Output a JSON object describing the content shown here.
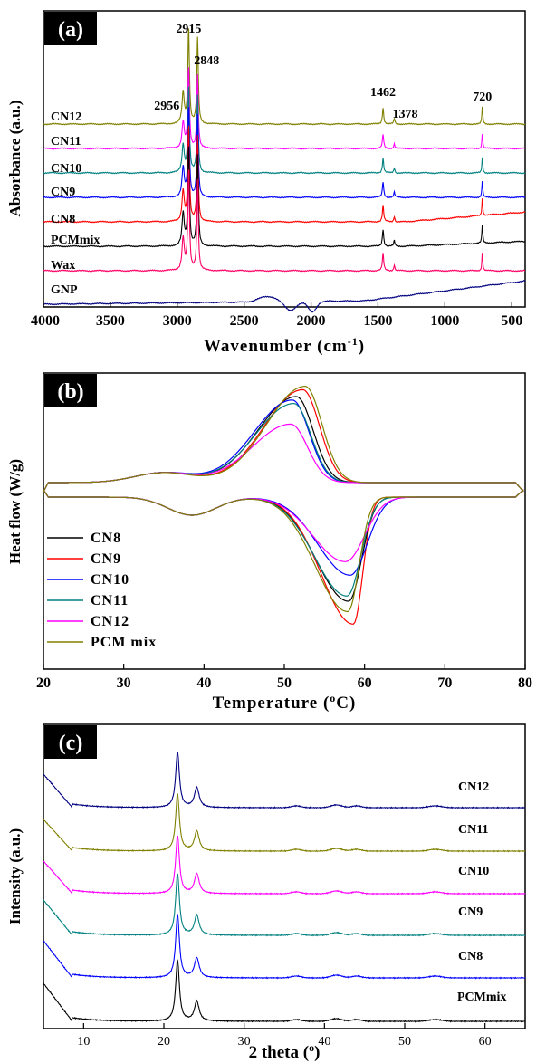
{
  "chart_data": [
    {
      "type": "line",
      "panel_label": "(a)",
      "xlabel": "Wavenumber (cm-1)",
      "xlabel_main": "Wavenumber (cm",
      "xlabel_sup": "-1",
      "xlabel_close": ")",
      "ylabel": "Absorbance (a.u.)",
      "xlim": [
        4000,
        400
      ],
      "x_reversed": true,
      "xticks": [
        4000,
        3500,
        3000,
        2500,
        2000,
        1500,
        1000,
        500
      ],
      "peak_labels": [
        "2956",
        "2915",
        "2848",
        "1462",
        "1378",
        "720"
      ],
      "peak_positions": [
        2956,
        2915,
        2848,
        1462,
        1378,
        720
      ],
      "series": [
        {
          "name": "CN12",
          "color": "#808000"
        },
        {
          "name": "CN11",
          "color": "#ff00ff"
        },
        {
          "name": "CN10",
          "color": "#008080"
        },
        {
          "name": "CN9",
          "color": "#0000ff"
        },
        {
          "name": "CN8",
          "color": "#ff0000"
        },
        {
          "name": "PCMmix",
          "color": "#000000"
        },
        {
          "name": "Wax",
          "color": "#ff0066"
        },
        {
          "name": "GNP",
          "color": "#000080"
        }
      ]
    },
    {
      "type": "line",
      "panel_label": "(b)",
      "xlabel": "Temperature (oC)",
      "xlabel_main": "Temperature (",
      "xlabel_sup": "o",
      "xlabel_close": "C)",
      "ylabel": "Heat flow (W/g)",
      "xlim": [
        20,
        80
      ],
      "xticks": [
        20,
        30,
        40,
        50,
        60,
        70,
        80
      ],
      "legend_position": "bottom-left",
      "series": [
        {
          "name": "CN8",
          "color": "#000000",
          "exo_peak": 51.5,
          "exo_height": 1.0,
          "endo_peak": 58.0,
          "endo_depth": 1.0
        },
        {
          "name": "CN9",
          "color": "#ff0000",
          "exo_peak": 52.3,
          "exo_height": 1.08,
          "endo_peak": 58.6,
          "endo_depth": 1.22
        },
        {
          "name": "CN10",
          "color": "#0000ff",
          "exo_peak": 51.0,
          "exo_height": 0.96,
          "endo_peak": 58.2,
          "endo_depth": 0.75
        },
        {
          "name": "CN11",
          "color": "#008080",
          "exo_peak": 51.2,
          "exo_height": 0.92,
          "endo_peak": 57.8,
          "endo_depth": 0.95
        },
        {
          "name": "CN12",
          "color": "#ff00ff",
          "exo_peak": 50.8,
          "exo_height": 0.68,
          "endo_peak": 57.6,
          "endo_depth": 0.62
        },
        {
          "name": "PCM mix",
          "color": "#808000",
          "exo_peak": 52.6,
          "exo_height": 1.12,
          "endo_peak": 57.9,
          "endo_depth": 1.1
        }
      ]
    },
    {
      "type": "line",
      "panel_label": "(c)",
      "xlabel": "2 theta (o)",
      "xlabel_main": "2 theta (",
      "xlabel_sup": "o",
      "xlabel_close": ")",
      "ylabel": "Intensity (a.u.)",
      "xlim": [
        5,
        65
      ],
      "xticks": [
        10,
        20,
        30,
        40,
        50,
        60
      ],
      "peak_positions": [
        21.7,
        24.1
      ],
      "series": [
        {
          "name": "CN12",
          "color": "#000080"
        },
        {
          "name": "CN11",
          "color": "#808000"
        },
        {
          "name": "CN10",
          "color": "#ff00ff"
        },
        {
          "name": "CN9",
          "color": "#008080"
        },
        {
          "name": "CN8",
          "color": "#0000ff"
        },
        {
          "name": "PCMmix",
          "color": "#000000"
        }
      ]
    }
  ]
}
